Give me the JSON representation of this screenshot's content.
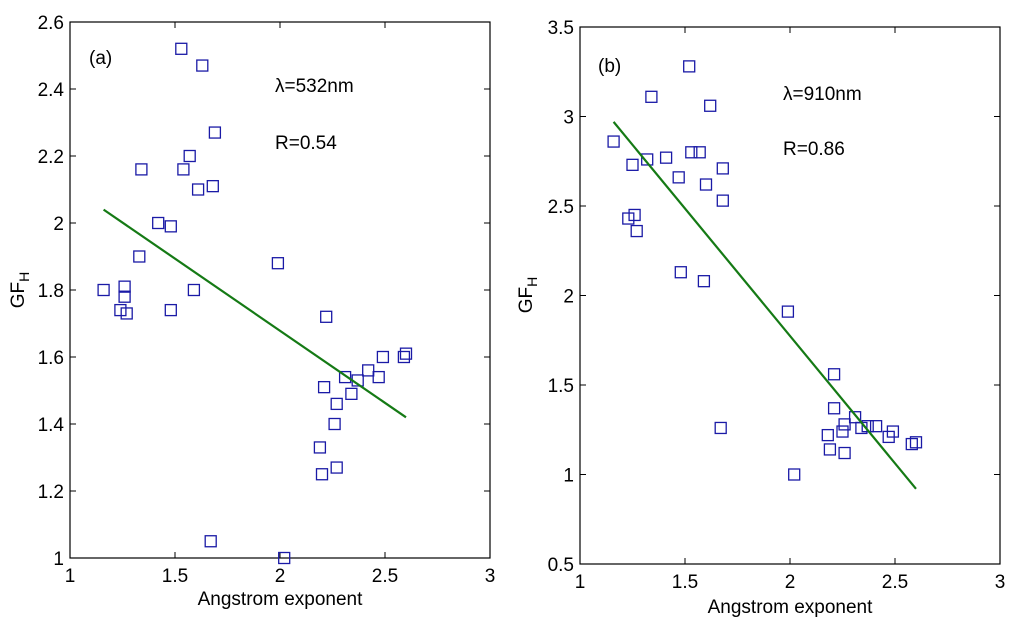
{
  "chart_data": [
    {
      "type": "scatter",
      "panel_label": "(a)",
      "xlabel": "Angstrom exponent",
      "ylabel_main": "GF",
      "ylabel_sub": "H",
      "xlim": [
        1,
        3
      ],
      "ylim": [
        1,
        2.6
      ],
      "xticks": [
        1,
        1.5,
        2,
        2.5,
        3
      ],
      "yticks": [
        1,
        1.2,
        1.4,
        1.6,
        1.8,
        2,
        2.2,
        2.4,
        2.6
      ],
      "xtick_labels": [
        "1",
        "1.5",
        "2",
        "2.5",
        "3"
      ],
      "ytick_labels": [
        "1",
        "1.2",
        "1.4",
        "1.6",
        "1.8",
        "2",
        "2.2",
        "2.4",
        "2.6"
      ],
      "annotations": [
        "λ=532nm",
        "R=0.54"
      ],
      "series": [
        {
          "name": "data",
          "points": [
            [
              1.16,
              1.8
            ],
            [
              1.24,
              1.74
            ],
            [
              1.26,
              1.81
            ],
            [
              1.26,
              1.78
            ],
            [
              1.27,
              1.73
            ],
            [
              1.33,
              1.9
            ],
            [
              1.34,
              2.16
            ],
            [
              1.42,
              2.0
            ],
            [
              1.48,
              1.99
            ],
            [
              1.48,
              1.74
            ],
            [
              1.53,
              2.52
            ],
            [
              1.54,
              2.16
            ],
            [
              1.57,
              2.2
            ],
            [
              1.59,
              1.8
            ],
            [
              1.61,
              2.1
            ],
            [
              1.63,
              2.47
            ],
            [
              1.67,
              1.05
            ],
            [
              1.68,
              2.11
            ],
            [
              1.69,
              2.27
            ],
            [
              1.99,
              1.88
            ],
            [
              2.02,
              1.0
            ],
            [
              2.19,
              1.33
            ],
            [
              2.2,
              1.25
            ],
            [
              2.21,
              1.51
            ],
            [
              2.22,
              1.72
            ],
            [
              2.26,
              1.4
            ],
            [
              2.27,
              1.46
            ],
            [
              2.27,
              1.27
            ],
            [
              2.31,
              1.54
            ],
            [
              2.34,
              1.49
            ],
            [
              2.37,
              1.53
            ],
            [
              2.42,
              1.56
            ],
            [
              2.47,
              1.54
            ],
            [
              2.49,
              1.6
            ],
            [
              2.59,
              1.6
            ],
            [
              2.6,
              1.61
            ]
          ]
        }
      ],
      "fit_line": {
        "x": [
          1.16,
          2.6
        ],
        "y": [
          2.04,
          1.42
        ]
      }
    },
    {
      "type": "scatter",
      "panel_label": "(b)",
      "xlabel": "Angstrom exponent",
      "ylabel_main": "GF",
      "ylabel_sub": "H",
      "xlim": [
        1,
        3
      ],
      "ylim": [
        0.5,
        3.5
      ],
      "xticks": [
        1,
        1.5,
        2,
        2.5,
        3
      ],
      "yticks": [
        0.5,
        1,
        1.5,
        2,
        2.5,
        3,
        3.5
      ],
      "xtick_labels": [
        "1",
        "1.5",
        "2",
        "2.5",
        "3"
      ],
      "ytick_labels": [
        "0.5",
        "1",
        "1.5",
        "2",
        "2.5",
        "3",
        "3.5"
      ],
      "annotations": [
        "λ=910nm",
        "R=0.86"
      ],
      "series": [
        {
          "name": "data",
          "points": [
            [
              1.16,
              2.86
            ],
            [
              1.23,
              2.43
            ],
            [
              1.25,
              2.73
            ],
            [
              1.26,
              2.45
            ],
            [
              1.27,
              2.36
            ],
            [
              1.32,
              2.76
            ],
            [
              1.34,
              3.11
            ],
            [
              1.41,
              2.77
            ],
            [
              1.47,
              2.66
            ],
            [
              1.48,
              2.13
            ],
            [
              1.52,
              3.28
            ],
            [
              1.53,
              2.8
            ],
            [
              1.57,
              2.8
            ],
            [
              1.59,
              2.08
            ],
            [
              1.6,
              2.62
            ],
            [
              1.62,
              3.06
            ],
            [
              1.67,
              1.26
            ],
            [
              1.68,
              2.53
            ],
            [
              1.68,
              2.71
            ],
            [
              1.99,
              1.91
            ],
            [
              2.02,
              1.0
            ],
            [
              2.18,
              1.22
            ],
            [
              2.19,
              1.14
            ],
            [
              2.21,
              1.37
            ],
            [
              2.21,
              1.56
            ],
            [
              2.25,
              1.24
            ],
            [
              2.26,
              1.28
            ],
            [
              2.26,
              1.12
            ],
            [
              2.31,
              1.32
            ],
            [
              2.34,
              1.26
            ],
            [
              2.37,
              1.27
            ],
            [
              2.41,
              1.27
            ],
            [
              2.47,
              1.21
            ],
            [
              2.49,
              1.24
            ],
            [
              2.58,
              1.17
            ],
            [
              2.6,
              1.18
            ]
          ]
        }
      ],
      "fit_line": {
        "x": [
          1.16,
          2.6
        ],
        "y": [
          2.97,
          0.92
        ]
      }
    }
  ]
}
